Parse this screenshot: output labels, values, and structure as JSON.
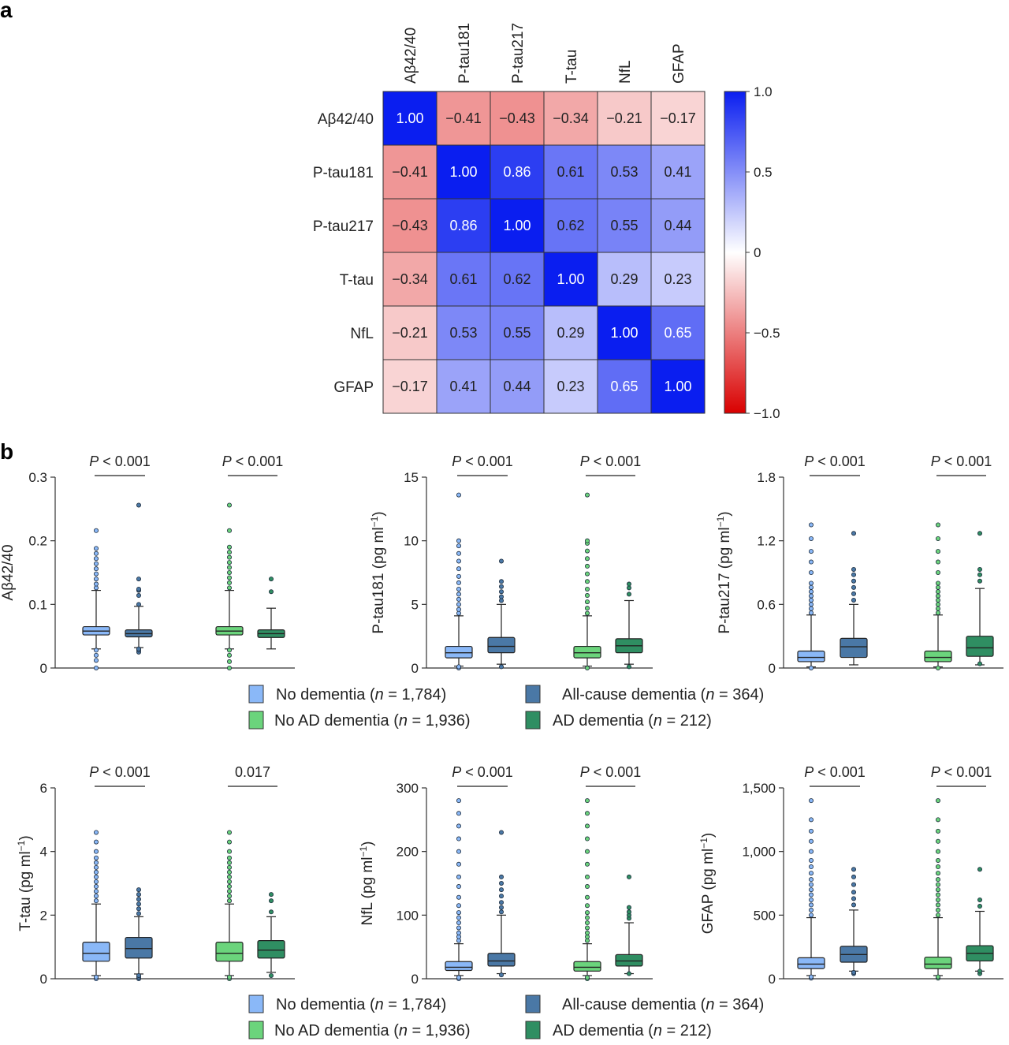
{
  "panel_a_letter": "a",
  "panel_b_letter": "b",
  "chart_data": [
    {
      "type": "heatmap",
      "title": "",
      "variables": [
        "Aβ42/40",
        "P-tau181",
        "P-tau217",
        "T-tau",
        "NfL",
        "GFAP"
      ],
      "matrix": [
        [
          "1.00",
          "−0.41",
          "−0.43",
          "−0.34",
          "−0.21",
          "−0.17"
        ],
        [
          "−0.41",
          "1.00",
          "0.86",
          "0.61",
          "0.53",
          "0.41"
        ],
        [
          "−0.43",
          "0.86",
          "1.00",
          "0.62",
          "0.55",
          "0.44"
        ],
        [
          "−0.34",
          "0.61",
          "0.62",
          "1.00",
          "0.29",
          "0.23"
        ],
        [
          "−0.21",
          "0.53",
          "0.55",
          "0.29",
          "1.00",
          "0.65"
        ],
        [
          "−0.17",
          "0.41",
          "0.44",
          "0.23",
          "0.65",
          "1.00"
        ]
      ],
      "colorbar": {
        "range": [
          -1.0,
          1.0
        ],
        "ticks": [
          "1.0",
          "0.5",
          "0",
          "−0.5",
          "−1.0"
        ],
        "tick_values": [
          1.0,
          0.5,
          0,
          -0.5,
          -1.0
        ],
        "colors": {
          "negative": "#d90000",
          "zero": "#ffffff",
          "positive": "#0a1ef0"
        }
      }
    },
    {
      "type": "box",
      "panel": "b",
      "groups": [
        {
          "label": "No dementia (n = 1,784)",
          "label_prefix": "No dementia (",
          "label_suffix": " = 1,784)",
          "color": "#8ab8f8"
        },
        {
          "label": "All-cause dementia (n = 364)",
          "label_prefix": "All-cause dementia (",
          "label_suffix": " = 364)",
          "color": "#4a78a6"
        },
        {
          "label": "No AD dementia (n = 1,936)",
          "label_prefix": "No AD dementia (",
          "label_suffix": " = 1,936)",
          "color": "#6bd47c"
        },
        {
          "label": "AD dementia (n = 212)",
          "label_prefix": "AD dementia (",
          "label_suffix": " = 212)",
          "color": "#2f8e62"
        }
      ],
      "plots": [
        {
          "ylabel": "Aβ42/40",
          "ylabel_sup": "",
          "ylim": [
            0,
            0.3
          ],
          "ticks": [
            0,
            0.1,
            0.2,
            0.3
          ],
          "tick_labels": [
            "0",
            "0.1",
            "0.2",
            "0.3"
          ],
          "comparisons": [
            {
              "italic": "P",
              "rest": " < 0.001"
            },
            {
              "italic": "P",
              "rest": " < 0.001"
            }
          ],
          "boxes": [
            {
              "group": 0,
              "min": 0.03,
              "q1": 0.052,
              "median": 0.058,
              "q3": 0.065,
              "max": 0.122,
              "outliers": [
                0.0,
                0.012,
                0.02,
                0.028,
                0.126,
                0.132,
                0.14,
                0.148,
                0.156,
                0.164,
                0.172,
                0.18,
                0.188,
                0.216
              ]
            },
            {
              "group": 1,
              "min": 0.032,
              "q1": 0.049,
              "median": 0.054,
              "q3": 0.06,
              "max": 0.097,
              "outliers": [
                0.025,
                0.028,
                0.03,
                0.1,
                0.114,
                0.122,
                0.124,
                0.14,
                0.256
              ]
            },
            {
              "group": 2,
              "min": 0.03,
              "q1": 0.052,
              "median": 0.058,
              "q3": 0.065,
              "max": 0.122,
              "outliers": [
                0.0,
                0.01,
                0.02,
                0.028,
                0.126,
                0.134,
                0.142,
                0.15,
                0.158,
                0.166,
                0.174,
                0.182,
                0.19,
                0.216,
                0.256
              ]
            },
            {
              "group": 3,
              "min": 0.03,
              "q1": 0.048,
              "median": 0.054,
              "q3": 0.06,
              "max": 0.094,
              "outliers": [
                0.12,
                0.14
              ]
            }
          ]
        },
        {
          "ylabel": "P-tau181 (pg ml",
          "ylabel_sup": "−1",
          "ylim": [
            0,
            15
          ],
          "ticks": [
            0,
            5,
            10,
            15
          ],
          "tick_labels": [
            "0",
            "5",
            "10",
            "15"
          ],
          "comparisons": [
            {
              "italic": "P",
              "rest": " < 0.001"
            },
            {
              "italic": "P",
              "rest": " < 0.001"
            }
          ],
          "boxes": [
            {
              "group": 0,
              "min": 0.15,
              "q1": 0.8,
              "median": 1.2,
              "q3": 1.7,
              "max": 4.1,
              "outliers": [
                0.0,
                0.1,
                4.3,
                4.6,
                5.0,
                5.4,
                5.8,
                6.2,
                6.7,
                7.2,
                7.8,
                8.4,
                9.0,
                9.6,
                10.0,
                13.6
              ]
            },
            {
              "group": 1,
              "min": 0.3,
              "q1": 1.2,
              "median": 1.7,
              "q3": 2.4,
              "max": 5.0,
              "outliers": [
                0.1,
                5.3,
                5.6,
                6.0,
                6.4,
                6.8,
                8.4
              ]
            },
            {
              "group": 2,
              "min": 0.15,
              "q1": 0.8,
              "median": 1.2,
              "q3": 1.7,
              "max": 4.1,
              "outliers": [
                0.0,
                4.3,
                4.7,
                5.2,
                5.7,
                6.2,
                6.8,
                7.4,
                8.0,
                8.6,
                9.2,
                9.8,
                10.0,
                13.6
              ]
            },
            {
              "group": 3,
              "min": 0.3,
              "q1": 1.2,
              "median": 1.75,
              "q3": 2.3,
              "max": 5.3,
              "outliers": [
                0.1,
                5.8,
                6.3,
                6.6
              ]
            }
          ]
        },
        {
          "ylabel": "P-tau217 (pg ml",
          "ylabel_sup": "−1",
          "ylim": [
            0,
            1.8
          ],
          "ticks": [
            0,
            0.6,
            1.2,
            1.8
          ],
          "tick_labels": [
            "0",
            "0.6",
            "1.2",
            "1.8"
          ],
          "comparisons": [
            {
              "italic": "P",
              "rest": " < 0.001"
            },
            {
              "italic": "P",
              "rest": " < 0.001"
            }
          ],
          "boxes": [
            {
              "group": 0,
              "min": 0.01,
              "q1": 0.06,
              "median": 0.1,
              "q3": 0.16,
              "max": 0.5,
              "outliers": [
                0.0,
                0.52,
                0.56,
                0.6,
                0.64,
                0.68,
                0.72,
                0.76,
                0.8,
                0.9,
                1.0,
                1.1,
                1.22,
                1.35
              ]
            },
            {
              "group": 1,
              "min": 0.03,
              "q1": 0.1,
              "median": 0.2,
              "q3": 0.28,
              "max": 0.6,
              "outliers": [
                0.64,
                0.7,
                0.76,
                0.82,
                0.88,
                0.93,
                1.27
              ]
            },
            {
              "group": 2,
              "min": 0.01,
              "q1": 0.06,
              "median": 0.1,
              "q3": 0.16,
              "max": 0.5,
              "outliers": [
                0.0,
                0.52,
                0.56,
                0.6,
                0.64,
                0.68,
                0.72,
                0.76,
                0.8,
                0.9,
                1.0,
                1.1,
                1.22,
                1.35
              ]
            },
            {
              "group": 3,
              "min": 0.03,
              "q1": 0.11,
              "median": 0.19,
              "q3": 0.3,
              "max": 0.75,
              "outliers": [
                0.04,
                0.82,
                0.88,
                0.93,
                1.27
              ]
            }
          ]
        },
        {
          "ylabel": "T-tau (pg ml",
          "ylabel_sup": "−1",
          "ylim": [
            0,
            6
          ],
          "ticks": [
            0,
            2,
            4,
            6
          ],
          "tick_labels": [
            "0",
            "2",
            "4",
            "6"
          ],
          "comparisons": [
            {
              "italic": "P",
              "rest": " < 0.001"
            },
            {
              "italic": "",
              "rest": "0.017"
            }
          ],
          "boxes": [
            {
              "group": 0,
              "min": 0.1,
              "q1": 0.55,
              "median": 0.8,
              "q3": 1.15,
              "max": 2.35,
              "outliers": [
                0.0,
                0.05,
                2.45,
                2.6,
                2.75,
                2.9,
                3.05,
                3.2,
                3.35,
                3.5,
                3.65,
                3.8,
                4.0,
                4.3,
                4.6
              ]
            },
            {
              "group": 1,
              "min": 0.15,
              "q1": 0.65,
              "median": 0.95,
              "q3": 1.3,
              "max": 1.95,
              "outliers": [
                0.0,
                0.05,
                0.1,
                2.05,
                2.2,
                2.35,
                2.5,
                2.65,
                2.8
              ]
            },
            {
              "group": 2,
              "min": 0.1,
              "q1": 0.55,
              "median": 0.8,
              "q3": 1.15,
              "max": 2.35,
              "outliers": [
                0.0,
                0.05,
                2.45,
                2.6,
                2.75,
                2.9,
                3.05,
                3.2,
                3.35,
                3.5,
                3.65,
                3.8,
                4.0,
                4.3,
                4.6
              ]
            },
            {
              "group": 3,
              "min": 0.2,
              "q1": 0.65,
              "median": 0.9,
              "q3": 1.2,
              "max": 1.95,
              "outliers": [
                0.1,
                2.1,
                2.45,
                2.65
              ]
            }
          ]
        },
        {
          "ylabel": "NfL (pg ml",
          "ylabel_sup": "−1",
          "ylim": [
            0,
            300
          ],
          "ticks": [
            0,
            100,
            200,
            300
          ],
          "tick_labels": [
            "0",
            "100",
            "200",
            "300"
          ],
          "comparisons": [
            {
              "italic": "P",
              "rest": " < 0.001"
            },
            {
              "italic": "P",
              "rest": " < 0.001"
            }
          ],
          "boxes": [
            {
              "group": 0,
              "min": 5,
              "q1": 13,
              "median": 18,
              "q3": 27,
              "max": 55,
              "outliers": [
                0,
                2,
                60,
                66,
                72,
                80,
                88,
                96,
                104,
                115,
                128,
                145,
                160,
                180,
                200,
                220,
                240,
                260,
                280
              ]
            },
            {
              "group": 1,
              "min": 8,
              "q1": 20,
              "median": 28,
              "q3": 40,
              "max": 100,
              "outliers": [
                6,
                105,
                112,
                120,
                130,
                140,
                150,
                160,
                230
              ]
            },
            {
              "group": 2,
              "min": 5,
              "q1": 12,
              "median": 18,
              "q3": 27,
              "max": 55,
              "outliers": [
                0,
                2,
                60,
                66,
                72,
                80,
                88,
                96,
                104,
                115,
                128,
                145,
                160,
                180,
                200,
                220,
                240,
                260,
                280
              ]
            },
            {
              "group": 3,
              "min": 8,
              "q1": 20,
              "median": 28,
              "q3": 38,
              "max": 88,
              "outliers": [
                8,
                95,
                100,
                105,
                112,
                160
              ]
            }
          ]
        },
        {
          "ylabel": "GFAP (pg ml",
          "ylabel_sup": "−1",
          "ylim": [
            0,
            1500
          ],
          "ticks": [
            0,
            500,
            1000,
            1500
          ],
          "tick_labels": [
            "0",
            "500",
            "1,000",
            "1,500"
          ],
          "comparisons": [
            {
              "italic": "P",
              "rest": " < 0.001"
            },
            {
              "italic": "P",
              "rest": " < 0.001"
            }
          ],
          "boxes": [
            {
              "group": 0,
              "min": 25,
              "q1": 80,
              "median": 115,
              "q3": 165,
              "max": 480,
              "outliers": [
                5,
                15,
                500,
                540,
                580,
                620,
                660,
                700,
                740,
                780,
                830,
                880,
                930,
                1000,
                1080,
                1160,
                1250,
                1400
              ]
            },
            {
              "group": 1,
              "min": 60,
              "q1": 130,
              "median": 190,
              "q3": 255,
              "max": 540,
              "outliers": [
                40,
                50,
                580,
                630,
                680,
                740,
                800,
                860
              ]
            },
            {
              "group": 2,
              "min": 25,
              "q1": 80,
              "median": 115,
              "q3": 170,
              "max": 480,
              "outliers": [
                5,
                15,
                500,
                540,
                580,
                620,
                660,
                700,
                740,
                780,
                830,
                880,
                930,
                1000,
                1080,
                1160,
                1250,
                1400
              ]
            },
            {
              "group": 3,
              "min": 60,
              "q1": 140,
              "median": 200,
              "q3": 260,
              "max": 530,
              "outliers": [
                40,
                60,
                570,
                620,
                860
              ]
            }
          ]
        }
      ]
    }
  ]
}
